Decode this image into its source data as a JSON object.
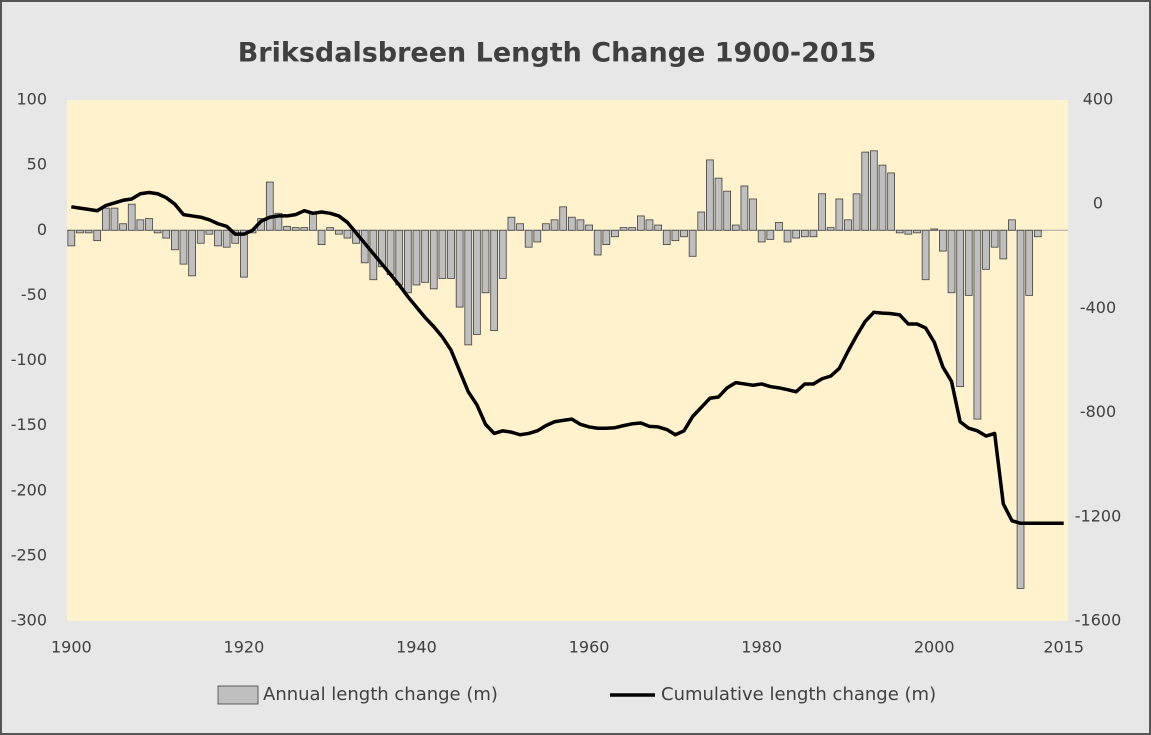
{
  "chart_data": {
    "type": "bar",
    "title": "Briksdalsbreen Length Change 1900-2015",
    "x": [
      1900,
      1901,
      1902,
      1903,
      1904,
      1905,
      1906,
      1907,
      1908,
      1909,
      1910,
      1911,
      1912,
      1913,
      1914,
      1915,
      1916,
      1917,
      1918,
      1919,
      1920,
      1921,
      1922,
      1923,
      1924,
      1925,
      1926,
      1927,
      1928,
      1929,
      1930,
      1931,
      1932,
      1933,
      1934,
      1935,
      1936,
      1937,
      1938,
      1939,
      1940,
      1941,
      1942,
      1943,
      1944,
      1945,
      1946,
      1947,
      1948,
      1949,
      1950,
      1951,
      1952,
      1953,
      1954,
      1955,
      1956,
      1957,
      1958,
      1959,
      1960,
      1961,
      1962,
      1963,
      1964,
      1965,
      1966,
      1967,
      1968,
      1969,
      1970,
      1971,
      1972,
      1973,
      1974,
      1975,
      1976,
      1977,
      1978,
      1979,
      1980,
      1981,
      1982,
      1983,
      1984,
      1985,
      1986,
      1987,
      1988,
      1989,
      1990,
      1991,
      1992,
      1993,
      1994,
      1995,
      1996,
      1997,
      1998,
      1999,
      2000,
      2001,
      2002,
      2003,
      2004,
      2005,
      2006,
      2007,
      2008,
      2009,
      2010,
      2011,
      2012,
      2013,
      2014,
      2015
    ],
    "xlim": [
      1899.5,
      2015.5
    ],
    "xticks": [
      1900,
      1920,
      1940,
      1960,
      1980,
      2000,
      2015
    ],
    "ylim": [
      -300,
      100
    ],
    "yticks": [
      -300,
      -250,
      -200,
      -150,
      -100,
      -50,
      0,
      50,
      100
    ],
    "y2lim": [
      -1600,
      400
    ],
    "y2ticks": [
      -1600,
      -1200,
      -800,
      -400,
      0,
      400
    ],
    "legend": "bottom",
    "series": [
      {
        "name": "Annual length change (m)",
        "type": "bar",
        "color": "#bfbfbf",
        "values": [
          -12,
          -2,
          -2,
          -8,
          17,
          17,
          5,
          20,
          8,
          9,
          -2,
          -6,
          -15,
          -26,
          -35,
          -10,
          -3,
          -12,
          -13,
          -10,
          -36,
          -2,
          9,
          37,
          13,
          3,
          2,
          2,
          13,
          -11,
          2,
          -3,
          -6,
          -10,
          -25,
          -38,
          -28,
          -34,
          -42,
          -48,
          -42,
          -40,
          -45,
          -37,
          -37,
          -59,
          -88,
          -80,
          -48,
          -77,
          -37,
          10,
          5,
          -13,
          -9,
          5,
          8,
          18,
          10,
          8,
          4,
          -19,
          -11,
          -5,
          2,
          2,
          11,
          8,
          4,
          -11,
          -8,
          -5,
          -20,
          14,
          54,
          40,
          30,
          4,
          34,
          24,
          -9,
          -7,
          6,
          -9,
          -6,
          -5,
          -5,
          28,
          2,
          24,
          8,
          28,
          60,
          61,
          50,
          44,
          -2,
          -3,
          -2,
          -38,
          1,
          -16,
          -48,
          -120,
          -50,
          -145,
          -30,
          -13,
          -22,
          8,
          -275,
          -50,
          -5,
          null,
          null,
          null
        ]
      },
      {
        "name": "Cumulative length change (m)",
        "type": "line",
        "color": "#000000",
        "axis": "y2",
        "values": [
          -10,
          -15,
          -20,
          -25,
          -5,
          5,
          15,
          20,
          40,
          45,
          40,
          25,
          0,
          -40,
          -45,
          -50,
          -60,
          -75,
          -85,
          -115,
          -115,
          -100,
          -65,
          -50,
          -45,
          -45,
          -40,
          -25,
          -35,
          -30,
          -35,
          -45,
          -70,
          -110,
          -150,
          -190,
          -230,
          -270,
          -310,
          -355,
          -395,
          -435,
          -470,
          -510,
          -560,
          -640,
          -720,
          -770,
          -845,
          -880,
          -870,
          -875,
          -885,
          -880,
          -870,
          -850,
          -835,
          -830,
          -825,
          -845,
          -855,
          -860,
          -860,
          -858,
          -850,
          -843,
          -840,
          -853,
          -855,
          -865,
          -885,
          -870,
          -815,
          -780,
          -745,
          -740,
          -705,
          -685,
          -690,
          -695,
          -690,
          -700,
          -705,
          -712,
          -720,
          -690,
          -690,
          -670,
          -660,
          -630,
          -565,
          -505,
          -450,
          -415,
          -418,
          -420,
          -425,
          -460,
          -460,
          -475,
          -530,
          -625,
          -680,
          -835,
          -860,
          -870,
          -890,
          -880,
          -1150,
          -1215,
          -1225,
          -1225,
          -1225,
          -1225,
          -1225,
          -1225
        ]
      }
    ]
  }
}
